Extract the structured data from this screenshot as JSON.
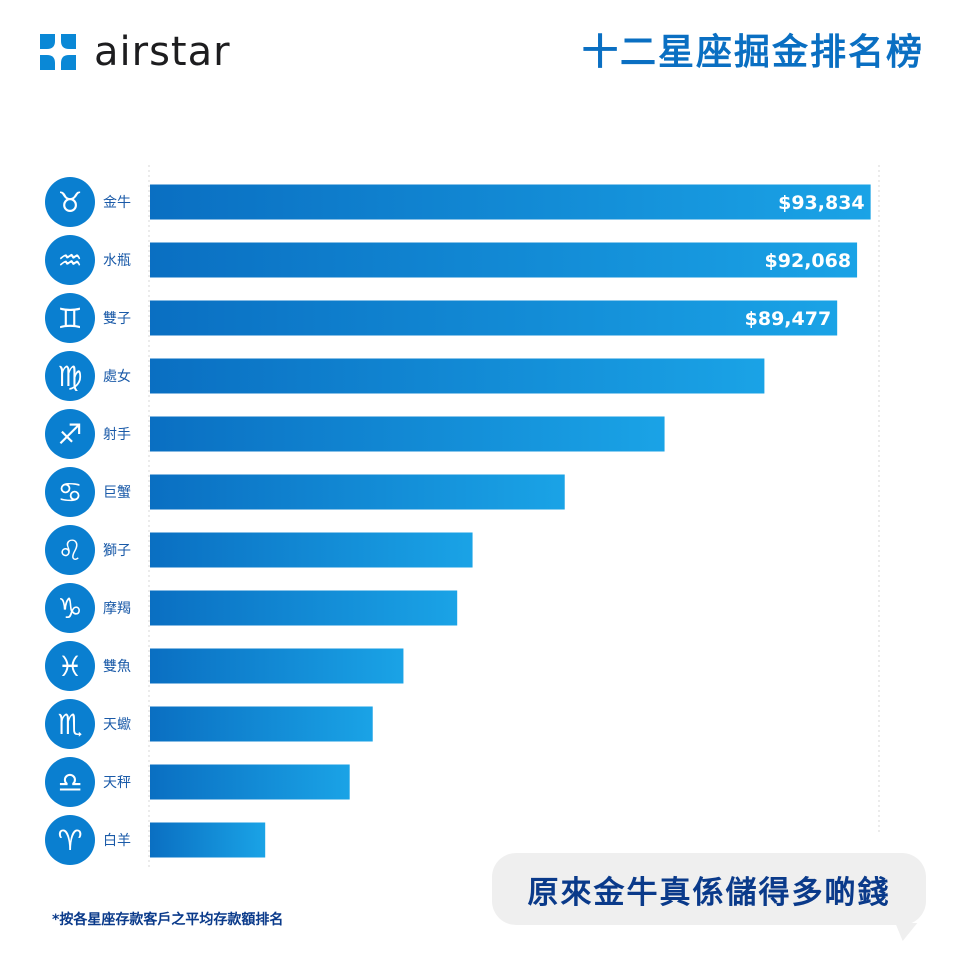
{
  "brand": {
    "name": "airstar",
    "logo_icon": "airstar-flower-icon",
    "color": "#0a88d6"
  },
  "header": {
    "title": "十二星座掘金排名榜"
  },
  "callout": {
    "text": "原來金牛真係儲得多啲錢"
  },
  "footnote": {
    "text": "*按各星座存款客戶之平均存款額排名"
  },
  "colors": {
    "bar_start": "#0a6fc2",
    "bar_end": "#1aa3e6",
    "icon_bg": "#0a7fd0",
    "label": "#1a5aa8"
  },
  "chart_data": {
    "type": "bar",
    "orientation": "horizontal",
    "title": "",
    "xlabel": "",
    "ylabel": "",
    "xlim": [
      0,
      100000
    ],
    "grid": true,
    "categories": [
      "金牛",
      "水瓶",
      "雙子",
      "處女",
      "射手",
      "巨蟹",
      "獅子",
      "摩羯",
      "雙魚",
      "天蠍",
      "天秤",
      "白羊"
    ],
    "icons": [
      "taurus-icon",
      "aquarius-icon",
      "gemini-icon",
      "virgo-icon",
      "sagittarius-icon",
      "cancer-icon",
      "leo-icon",
      "capricorn-icon",
      "pisces-icon",
      "scorpio-icon",
      "libra-icon",
      "aries-icon"
    ],
    "symbols": [
      "♉",
      "♒",
      "♊",
      "♍",
      "♐",
      "♋",
      "♌",
      "♑",
      "♓",
      "♏",
      "♎",
      "♈"
    ],
    "values": [
      93834,
      92068,
      89477,
      80000,
      67000,
      54000,
      42000,
      40000,
      33000,
      29000,
      26000,
      15000
    ],
    "data_labels": [
      "$93,834",
      "$92,068",
      "$89,477",
      "",
      "",
      "",
      "",
      "",
      "",
      "",
      "",
      ""
    ]
  }
}
